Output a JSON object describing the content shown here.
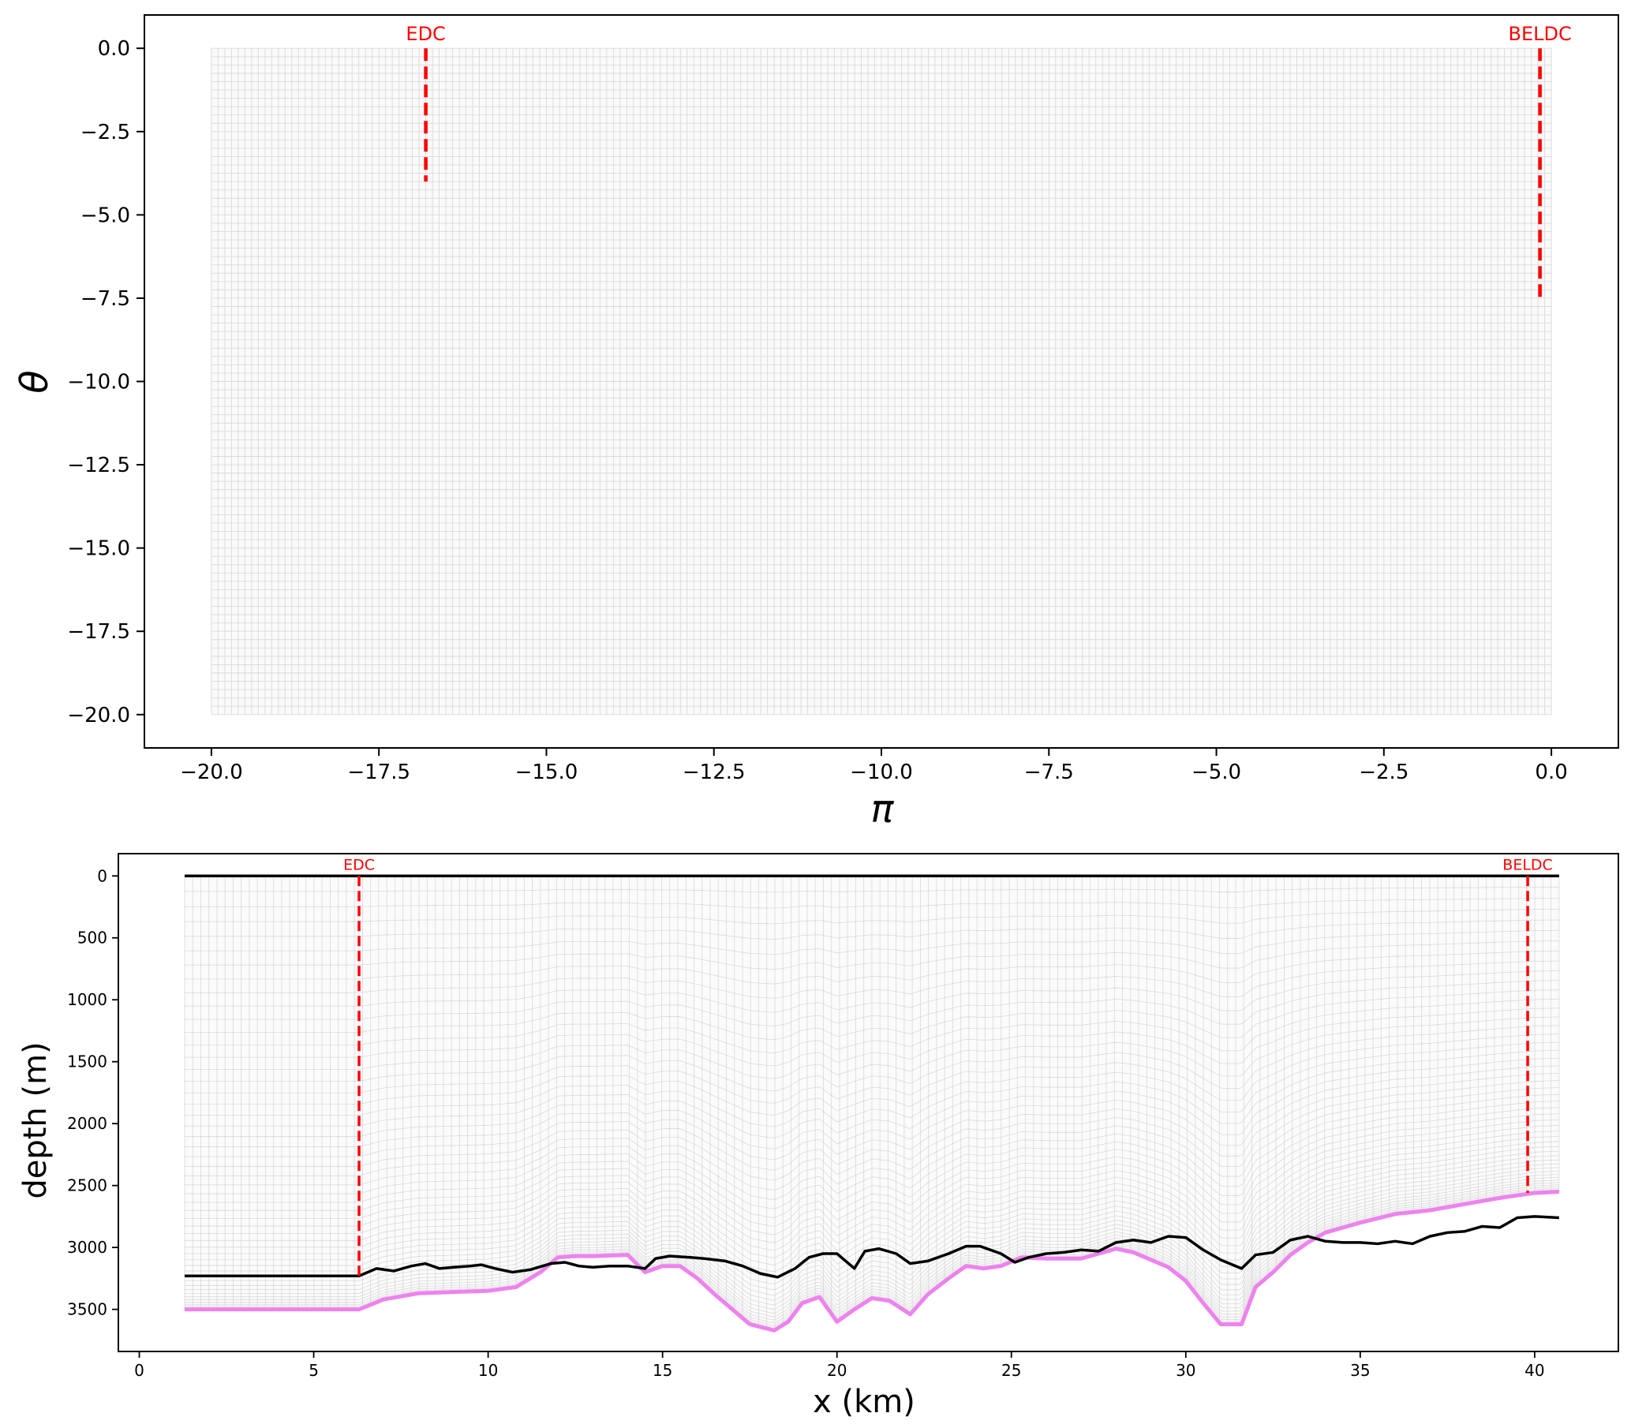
{
  "chart_data": [
    {
      "type": "line",
      "panel": "top",
      "xlabel": "π",
      "ylabel": "θ",
      "xlim": [
        -21,
        1
      ],
      "ylim": [
        -21,
        1
      ],
      "xticks": [
        -20.0,
        -17.5,
        -15.0,
        -12.5,
        -10.0,
        -7.5,
        -5.0,
        -2.5,
        0.0
      ],
      "xtick_labels": [
        "−20.0",
        "−17.5",
        "−15.0",
        "−12.5",
        "−10.0",
        "−7.5",
        "−5.0",
        "−2.5",
        "0.0"
      ],
      "yticks": [
        0.0,
        -2.5,
        -5.0,
        -7.5,
        -10.0,
        -12.5,
        -15.0,
        -17.5,
        -20.0
      ],
      "ytick_labels": [
        "0.0",
        "−2.5",
        "−5.0",
        "−7.5",
        "−10.0",
        "−12.5",
        "−15.0",
        "−17.5",
        "−20.0"
      ],
      "mesh": {
        "x_range": [
          -20,
          0
        ],
        "y_range": [
          -20,
          0
        ],
        "color": "#d9d9d9"
      },
      "markers": [
        {
          "label": "EDC",
          "x": -16.8,
          "y_top": 0,
          "y_bottom": -4.0,
          "color": "#ff0000"
        },
        {
          "label": "BELDC",
          "x": -0.17,
          "y_top": 0,
          "y_bottom": -7.5,
          "color": "#ff0000"
        }
      ],
      "grid": false
    },
    {
      "type": "line",
      "panel": "bottom",
      "xlabel": "x (km)",
      "ylabel": "depth (m)",
      "xlim": [
        -0.6,
        42.4
      ],
      "ylim": [
        3840,
        -180
      ],
      "y_inverted": true,
      "xticks": [
        0,
        5,
        10,
        15,
        20,
        25,
        30,
        35,
        40
      ],
      "xtick_labels": [
        "0",
        "5",
        "10",
        "15",
        "20",
        "25",
        "30",
        "35",
        "40"
      ],
      "yticks": [
        0,
        500,
        1000,
        1500,
        2000,
        2500,
        3000,
        3500
      ],
      "ytick_labels": [
        "0",
        "500",
        "1000",
        "1500",
        "2000",
        "2500",
        "3000",
        "3500"
      ],
      "x_range": [
        1.3,
        40.7
      ],
      "series": [
        {
          "role": "surface",
          "color": "#000000",
          "x": [
            1.3,
            40.7
          ],
          "y": [
            0,
            0
          ]
        },
        {
          "role": "bedrock",
          "color": "#000000",
          "x": [
            1.3,
            6.3,
            6.8,
            7.3,
            7.8,
            8.2,
            8.6,
            9.0,
            9.5,
            9.8,
            10.2,
            10.7,
            11.2,
            11.8,
            12.2,
            12.6,
            13.0,
            13.5,
            14.0,
            14.5,
            14.8,
            15.2,
            15.8,
            16.2,
            16.8,
            17.3,
            17.8,
            18.3,
            18.8,
            19.2,
            19.6,
            20.0,
            20.5,
            20.8,
            21.2,
            21.7,
            22.1,
            22.6,
            23.2,
            23.7,
            24.1,
            24.7,
            25.1,
            25.5,
            26.0,
            26.5,
            27.0,
            27.5,
            28.0,
            28.5,
            29.0,
            29.5,
            30.0,
            30.5,
            31.0,
            31.6,
            32.0,
            32.5,
            33.0,
            33.5,
            34.0,
            34.5,
            35.0,
            35.5,
            36.0,
            36.5,
            37.0,
            37.5,
            38.0,
            38.5,
            39.0,
            39.5,
            40.0,
            40.7
          ],
          "y": [
            3230,
            3230,
            3170,
            3190,
            3150,
            3130,
            3170,
            3160,
            3150,
            3140,
            3170,
            3200,
            3180,
            3130,
            3120,
            3150,
            3160,
            3150,
            3150,
            3170,
            3090,
            3070,
            3080,
            3090,
            3110,
            3150,
            3210,
            3240,
            3170,
            3080,
            3050,
            3050,
            3170,
            3030,
            3010,
            3050,
            3130,
            3110,
            3050,
            2990,
            2990,
            3050,
            3120,
            3080,
            3050,
            3040,
            3020,
            3030,
            2960,
            2940,
            2960,
            2910,
            2920,
            3020,
            3100,
            3170,
            3060,
            3040,
            2940,
            2910,
            2950,
            2960,
            2960,
            2970,
            2950,
            2970,
            2910,
            2880,
            2870,
            2830,
            2840,
            2760,
            2750,
            2760
          ]
        },
        {
          "role": "mesh-bottom",
          "color": "#ee82ee",
          "x": [
            1.3,
            6.3,
            7.0,
            8.0,
            9.0,
            10.0,
            10.8,
            11.5,
            12.0,
            12.5,
            13.0,
            14.0,
            14.5,
            15.0,
            15.5,
            16.0,
            16.5,
            17.0,
            17.5,
            18.2,
            18.6,
            19.0,
            19.5,
            20.0,
            20.5,
            21.0,
            21.5,
            22.1,
            22.6,
            23.2,
            23.7,
            24.2,
            24.7,
            25.3,
            26.0,
            27.0,
            27.5,
            28.0,
            28.5,
            29.0,
            29.5,
            30.0,
            30.5,
            31.0,
            31.6,
            32.0,
            32.5,
            33.0,
            33.5,
            34.0,
            35.0,
            36.0,
            37.0,
            38.0,
            39.0,
            40.0,
            40.7
          ],
          "y": [
            3500,
            3500,
            3420,
            3370,
            3360,
            3350,
            3320,
            3200,
            3080,
            3070,
            3070,
            3060,
            3200,
            3150,
            3150,
            3250,
            3380,
            3500,
            3620,
            3670,
            3600,
            3450,
            3400,
            3600,
            3500,
            3410,
            3430,
            3540,
            3380,
            3250,
            3150,
            3170,
            3150,
            3080,
            3090,
            3090,
            3050,
            3010,
            3040,
            3100,
            3160,
            3270,
            3450,
            3620,
            3620,
            3320,
            3200,
            3060,
            2960,
            2880,
            2800,
            2730,
            2700,
            2650,
            2600,
            2560,
            2550
          ]
        }
      ],
      "markers": [
        {
          "label": "EDC",
          "x": 6.3,
          "y_top": 0,
          "y_bottom": 3230,
          "color": "#ff0000"
        },
        {
          "label": "BELDC",
          "x": 39.8,
          "y_top": 0,
          "y_bottom": 2560,
          "color": "#ff0000"
        }
      ],
      "grid": false
    }
  ]
}
